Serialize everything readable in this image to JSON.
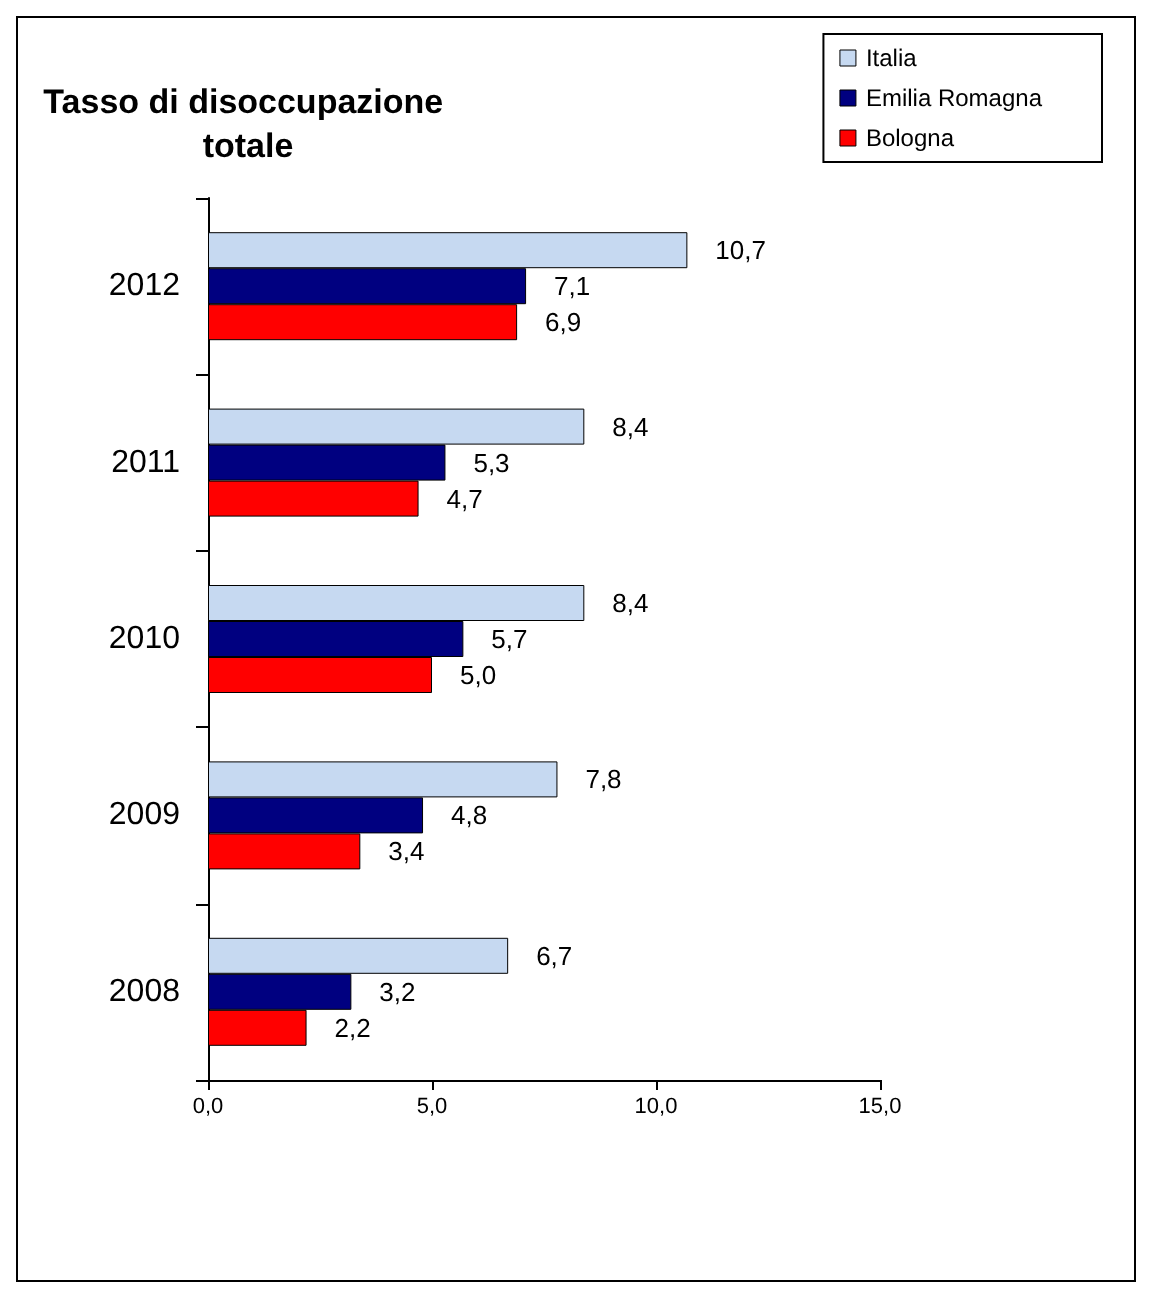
{
  "chart_data": {
    "type": "bar",
    "orientation": "horizontal",
    "title": "Tasso di disoccupazione totale",
    "categories": [
      "2012",
      "2011",
      "2010",
      "2009",
      "2008"
    ],
    "series": [
      {
        "name": "Italia",
        "color": "#c6d9f1",
        "values": [
          10.7,
          8.4,
          8.4,
          7.8,
          6.7
        ],
        "value_labels": [
          "10,7",
          "8,4",
          "8,4",
          "7,8",
          "6,7"
        ]
      },
      {
        "name": "Emilia Romagna",
        "color": "#000080",
        "values": [
          7.1,
          5.3,
          5.7,
          4.8,
          3.2
        ],
        "value_labels": [
          "7,1",
          "5,3",
          "5,7",
          "4,8",
          "3,2"
        ]
      },
      {
        "name": "Bologna",
        "color": "#ff0000",
        "values": [
          6.9,
          4.7,
          5.0,
          3.4,
          2.2
        ],
        "value_labels": [
          "6,9",
          "4,7",
          "5,0",
          "3,4",
          "2,2"
        ]
      }
    ],
    "xlim": [
      0,
      15
    ],
    "xticks": [
      {
        "value": 0,
        "label": "0,0"
      },
      {
        "value": 5,
        "label": "5,0"
      },
      {
        "value": 10,
        "label": "10,0"
      },
      {
        "value": 15,
        "label": "15,0"
      }
    ],
    "legend": "top right",
    "grid": false
  }
}
